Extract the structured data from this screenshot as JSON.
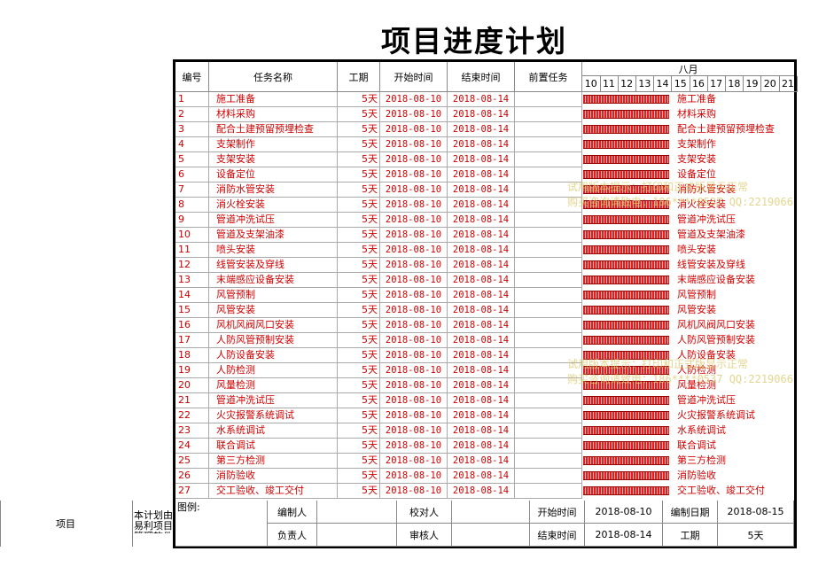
{
  "title": "项目进度计划",
  "headers": {
    "no": "编号",
    "name": "任务名称",
    "duration": "工期",
    "start": "开始时间",
    "end": "结束时间",
    "predecessor": "前置任务",
    "month": "八月"
  },
  "days": [
    "10",
    "11",
    "12",
    "13",
    "14",
    "15",
    "16",
    "17",
    "18",
    "19",
    "20",
    "21"
  ],
  "tasks": [
    {
      "no": "1",
      "name": "施工准备",
      "duration": "5天",
      "start": "2018-08-10",
      "end": "2018-08-14"
    },
    {
      "no": "2",
      "name": "材料采购",
      "duration": "5天",
      "start": "2018-08-10",
      "end": "2018-08-14"
    },
    {
      "no": "3",
      "name": "配合土建预留预埋检查",
      "duration": "5天",
      "start": "2018-08-10",
      "end": "2018-08-14"
    },
    {
      "no": "4",
      "name": "支架制作",
      "duration": "5天",
      "start": "2018-08-10",
      "end": "2018-08-14"
    },
    {
      "no": "5",
      "name": "支架安装",
      "duration": "5天",
      "start": "2018-08-10",
      "end": "2018-08-14"
    },
    {
      "no": "6",
      "name": "设备定位",
      "duration": "5天",
      "start": "2018-08-10",
      "end": "2018-08-14"
    },
    {
      "no": "7",
      "name": "消防水管安装",
      "duration": "5天",
      "start": "2018-08-10",
      "end": "2018-08-14"
    },
    {
      "no": "8",
      "name": "消火栓安装",
      "duration": "5天",
      "start": "2018-08-10",
      "end": "2018-08-14"
    },
    {
      "no": "9",
      "name": "管道冲洗试压",
      "duration": "5天",
      "start": "2018-08-10",
      "end": "2018-08-14"
    },
    {
      "no": "10",
      "name": "管道及支架油漆",
      "duration": "5天",
      "start": "2018-08-10",
      "end": "2018-08-14"
    },
    {
      "no": "11",
      "name": "喷头安装",
      "duration": "5天",
      "start": "2018-08-10",
      "end": "2018-08-14"
    },
    {
      "no": "12",
      "name": "线管安装及穿线",
      "duration": "5天",
      "start": "2018-08-10",
      "end": "2018-08-14"
    },
    {
      "no": "13",
      "name": "末端感应设备安装",
      "duration": "5天",
      "start": "2018-08-10",
      "end": "2018-08-14"
    },
    {
      "no": "14",
      "name": "风管预制",
      "duration": "5天",
      "start": "2018-08-10",
      "end": "2018-08-14"
    },
    {
      "no": "15",
      "name": "风管安装",
      "duration": "5天",
      "start": "2018-08-10",
      "end": "2018-08-14"
    },
    {
      "no": "16",
      "name": "风机风阀风口安装",
      "duration": "5天",
      "start": "2018-08-10",
      "end": "2018-08-14"
    },
    {
      "no": "17",
      "name": "人防风管预制安装",
      "duration": "5天",
      "start": "2018-08-10",
      "end": "2018-08-14"
    },
    {
      "no": "18",
      "name": "人防设备安装",
      "duration": "5天",
      "start": "2018-08-10",
      "end": "2018-08-14"
    },
    {
      "no": "19",
      "name": "人防检测",
      "duration": "5天",
      "start": "2018-08-10",
      "end": "2018-08-14"
    },
    {
      "no": "20",
      "name": "风量检测",
      "duration": "5天",
      "start": "2018-08-10",
      "end": "2018-08-14"
    },
    {
      "no": "21",
      "name": "管道冲洗试压",
      "duration": "5天",
      "start": "2018-08-10",
      "end": "2018-08-14"
    },
    {
      "no": "22",
      "name": "火灾报警系统调试",
      "duration": "5天",
      "start": "2018-08-10",
      "end": "2018-08-14"
    },
    {
      "no": "23",
      "name": "水系统调试",
      "duration": "5天",
      "start": "2018-08-10",
      "end": "2018-08-14"
    },
    {
      "no": "24",
      "name": "联合调试",
      "duration": "5天",
      "start": "2018-08-10",
      "end": "2018-08-14"
    },
    {
      "no": "25",
      "name": "第三方检测",
      "duration": "5天",
      "start": "2018-08-10",
      "end": "2018-08-14"
    },
    {
      "no": "26",
      "name": "消防验收",
      "duration": "5天",
      "start": "2018-08-10",
      "end": "2018-08-14"
    },
    {
      "no": "27",
      "name": "交工验收、竣工交付",
      "duration": "5天",
      "start": "2018-08-10",
      "end": "2018-08-14"
    }
  ],
  "footer": {
    "project": "项目",
    "note": "本计划由易利项目管理软件编制",
    "legend": "图例:",
    "editor": "编制人",
    "checker": "校对人",
    "owner": "负责人",
    "reviewer": "审核人",
    "start_label": "开始时间",
    "start_value": "2018-08-10",
    "end_label": "结束时间",
    "end_value": "2018-08-14",
    "date_label": "编制日期",
    "date_value": "2018-08-15",
    "duration_label": "工期",
    "duration_value": "5天"
  },
  "watermarks": [
    "试用版本提示：打印和正式版显示正常",
    "购买咨询请致电：186****0537 QQ:2219066"
  ],
  "colors": {
    "task_text": "#d00000",
    "bar": "#e02020",
    "watermark": "#d9c96a"
  }
}
